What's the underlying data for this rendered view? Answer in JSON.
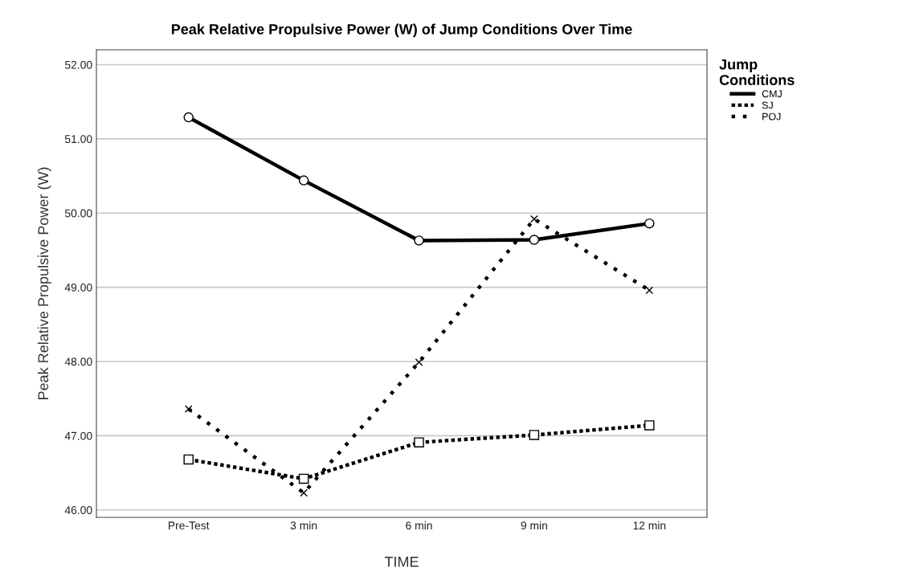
{
  "chart_data": {
    "type": "line",
    "title": "Peak Relative Propulsive Power (W) of Jump Conditions Over Time",
    "xlabel": "TIME",
    "ylabel": "Peak Relative Propulsive Power (W)",
    "legend_title": "Jump\nConditions",
    "categories": [
      "Pre-Test",
      "3 min",
      "6 min",
      "9 min",
      "12 min"
    ],
    "series": [
      {
        "name": "CMJ",
        "color": "#000000",
        "line_style": "solid",
        "marker": "circle",
        "values": [
          51.29,
          50.44,
          49.63,
          49.64,
          49.86
        ]
      },
      {
        "name": "SJ",
        "color": "#000000",
        "line_style": "dotted",
        "marker": "square",
        "values": [
          46.68,
          46.42,
          46.91,
          47.01,
          47.14
        ]
      },
      {
        "name": "POJ",
        "color": "#000000",
        "line_style": "dashed",
        "marker": "cross",
        "values": [
          47.36,
          46.23,
          47.99,
          49.92,
          48.96
        ]
      }
    ],
    "ylim": [
      45.9,
      52.2
    ],
    "yticks": [
      {
        "value": 46,
        "label": "46.00"
      },
      {
        "value": 47,
        "label": "47.00"
      },
      {
        "value": 48,
        "label": "48.00"
      },
      {
        "value": 49,
        "label": "49.00"
      },
      {
        "value": 50,
        "label": "50.00"
      },
      {
        "value": 51,
        "label": "51.00"
      },
      {
        "value": 52,
        "label": "52.00"
      }
    ],
    "grid": "y",
    "legend": "top right"
  }
}
